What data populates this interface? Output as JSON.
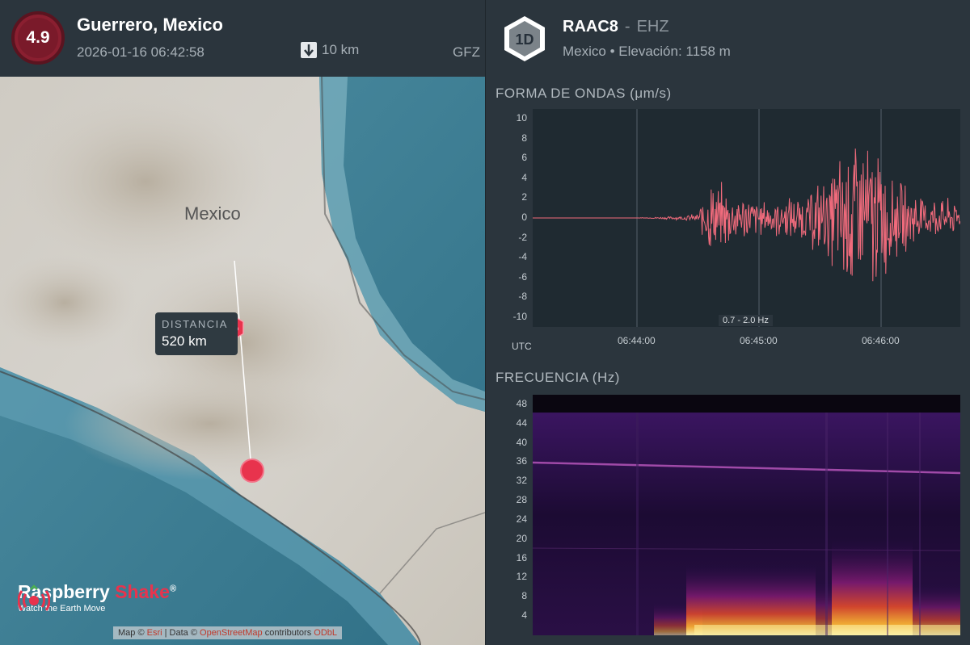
{
  "event": {
    "magnitude": "4.9",
    "location": "Guerrero, Mexico",
    "datetime": "2026-01-16 06:42:58",
    "depth": "10 km",
    "source": "GFZ",
    "depth_icon": "arrow-down-icon"
  },
  "map": {
    "region_label": "Mexico",
    "station_badge": "1D",
    "distance_label": "DISTANCIA",
    "distance_value": "520 km",
    "logo_name_a": "Raspberry",
    "logo_name_b": "Shake",
    "logo_reg": "®",
    "logo_tagline": "Watch the Earth Move",
    "attribution": {
      "map_prefix": "Map ©",
      "map_link": "Esri",
      "data_prefix": "| Data ©",
      "data_link": "OpenStreetMap",
      "suffix": "contributors",
      "license": "ODbL"
    }
  },
  "station": {
    "badge": "1D",
    "code": "RAAC8",
    "separator": "-",
    "channel": "EHZ",
    "location_line": "Mexico • Elevación: 1158 m"
  },
  "waveform": {
    "title": "FORMA DE ONDAS (μm/s)",
    "y_ticks": [
      "10",
      "8",
      "6",
      "4",
      "2",
      "0",
      "-2",
      "-4",
      "-6",
      "-8",
      "-10"
    ],
    "x_ticks": [
      "06:44:00",
      "06:45:00",
      "06:46:00"
    ],
    "x_axis_label": "UTC",
    "filter": "0.7 - 2.0 Hz",
    "color": "#f06b7c"
  },
  "spectrogram": {
    "title": "FRECUENCIA (Hz)",
    "y_ticks": [
      "48",
      "44",
      "40",
      "36",
      "32",
      "28",
      "24",
      "20",
      "16",
      "12",
      "8",
      "4"
    ]
  },
  "colors": {
    "accent_red": "#e8334d",
    "panel_bg": "#2b353d"
  },
  "chart_data": [
    {
      "type": "line",
      "title": "FORMA DE ONDAS (μm/s)",
      "xlabel": "UTC",
      "x_ticks": [
        "06:44:00",
        "06:45:00",
        "06:46:00"
      ],
      "ylim": [
        -11,
        11
      ],
      "annotation": "0.7 - 2.0 Hz",
      "series": [
        {
          "x": [
            "06:43:05",
            "06:43:30",
            "06:44:00",
            "06:44:20",
            "06:44:30",
            "06:44:35",
            "06:44:45",
            "06:45:00",
            "06:45:20",
            "06:45:35",
            "06:45:42",
            "06:45:48",
            "06:45:55",
            "06:46:10",
            "06:46:25",
            "06:46:40"
          ],
          "values": [
            0,
            0,
            0,
            0.2,
            0.5,
            4.5,
            3.5,
            2,
            2.5,
            5,
            9,
            10.8,
            9,
            4,
            2.5,
            1.8
          ]
        }
      ]
    },
    {
      "type": "heatmap",
      "title": "FRECUENCIA (Hz)",
      "y_ticks": [
        "4",
        "8",
        "12",
        "16",
        "20",
        "24",
        "28",
        "32",
        "36",
        "40",
        "44",
        "48"
      ],
      "ylim": [
        0,
        50
      ]
    }
  ]
}
